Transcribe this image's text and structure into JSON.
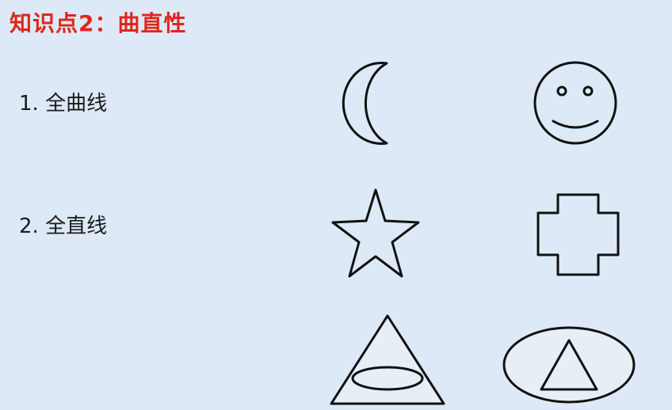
{
  "slide": {
    "title": "知识点2：曲直性",
    "items": [
      {
        "label": "1. 全曲线"
      },
      {
        "label": "2. 全直线"
      }
    ]
  },
  "colors": {
    "title": "#e0261b",
    "background": "#dde9f7",
    "stroke": "#111111"
  },
  "shapes": [
    {
      "name": "crescent-moon",
      "group": "全曲线"
    },
    {
      "name": "smiley-face",
      "group": "全曲线"
    },
    {
      "name": "star",
      "group": "全直线"
    },
    {
      "name": "cross",
      "group": "全直线"
    },
    {
      "name": "triangle-with-ellipse",
      "group": "mixed"
    },
    {
      "name": "ellipse-with-triangle",
      "group": "mixed"
    }
  ]
}
